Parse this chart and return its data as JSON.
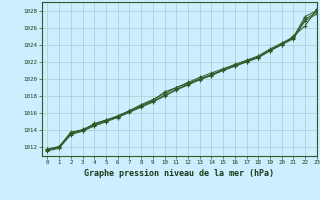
{
  "title": "Graphe pression niveau de la mer (hPa)",
  "bg_color": "#cceeff",
  "grid_color": "#aacccc",
  "line_color": "#2d5a27",
  "xlim": [
    -0.5,
    23
  ],
  "ylim": [
    1011.0,
    1029.0
  ],
  "xticks": [
    0,
    1,
    2,
    3,
    4,
    5,
    6,
    7,
    8,
    9,
    10,
    11,
    12,
    13,
    14,
    15,
    16,
    17,
    18,
    19,
    20,
    21,
    22,
    23
  ],
  "yticks": [
    1012,
    1014,
    1016,
    1018,
    1020,
    1022,
    1024,
    1026,
    1028
  ],
  "series": [
    [
      1011.8,
      1012.1,
      1013.8,
      1014.0,
      1014.8,
      1015.2,
      1015.6,
      1016.3,
      1016.9,
      1017.5,
      1018.5,
      1019.0,
      1019.5,
      1020.0,
      1020.5,
      1021.0,
      1021.5,
      1022.0,
      1022.5,
      1023.3,
      1024.0,
      1025.0,
      1026.2,
      1028.2
    ],
    [
      1011.8,
      1012.1,
      1013.7,
      1014.1,
      1014.7,
      1015.2,
      1015.7,
      1016.3,
      1017.0,
      1017.6,
      1018.3,
      1019.0,
      1019.6,
      1020.2,
      1020.7,
      1021.2,
      1021.7,
      1022.2,
      1022.7,
      1023.5,
      1024.2,
      1024.9,
      1027.3,
      1028.0
    ],
    [
      1011.7,
      1012.0,
      1013.6,
      1014.0,
      1014.6,
      1015.1,
      1015.6,
      1016.2,
      1016.8,
      1017.4,
      1018.1,
      1018.8,
      1019.4,
      1020.0,
      1020.5,
      1021.1,
      1021.6,
      1022.1,
      1022.6,
      1023.4,
      1024.1,
      1024.8,
      1027.0,
      1027.8
    ],
    [
      1011.6,
      1011.9,
      1013.5,
      1013.9,
      1014.5,
      1015.0,
      1015.5,
      1016.1,
      1016.7,
      1017.3,
      1018.0,
      1018.7,
      1019.3,
      1019.9,
      1020.4,
      1021.0,
      1021.5,
      1022.0,
      1022.5,
      1023.3,
      1024.0,
      1024.7,
      1026.8,
      1027.6
    ]
  ]
}
